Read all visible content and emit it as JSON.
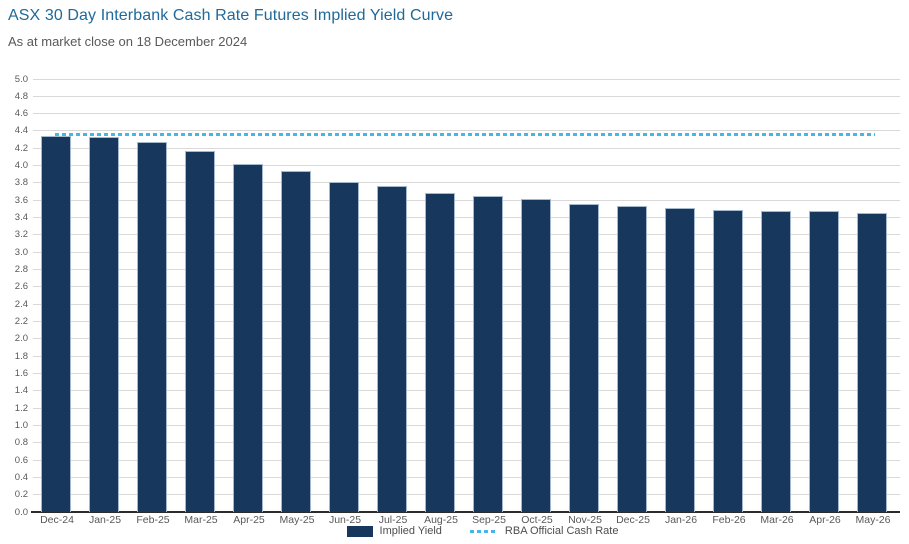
{
  "header": {
    "title": "ASX 30 Day Interbank Cash Rate Futures Implied Yield Curve",
    "subtitle": "As at market close on 18 December 2024"
  },
  "chart_data": {
    "type": "bar",
    "title": "ASX 30 Day Interbank Cash Rate Futures Implied Yield Curve",
    "subtitle": "As at market close on 18 December 2024",
    "categories": [
      "Dec-24",
      "Jan-25",
      "Feb-25",
      "Mar-25",
      "Apr-25",
      "May-25",
      "Jun-25",
      "Jul-25",
      "Aug-25",
      "Sep-25",
      "Oct-25",
      "Nov-25",
      "Dec-25",
      "Jan-26",
      "Feb-26",
      "Mar-26",
      "Apr-26",
      "May-26"
    ],
    "series": [
      {
        "name": "Implied Yield",
        "type": "bar",
        "color": "#17375D",
        "values": [
          4.34,
          4.33,
          4.27,
          4.17,
          4.02,
          3.94,
          3.81,
          3.76,
          3.68,
          3.65,
          3.61,
          3.56,
          3.53,
          3.51,
          3.49,
          3.48,
          3.48,
          3.45
        ]
      },
      {
        "name": "RBA Official Cash Rate",
        "type": "dashed-line",
        "color": "#45B6E8",
        "value": 4.35
      }
    ],
    "xlabel": "",
    "ylabel": "",
    "ylim": [
      0,
      5
    ],
    "ytick_step": 0.2,
    "y_ticks": [
      "5.0",
      "4.8",
      "4.6",
      "4.4",
      "4.2",
      "4.0",
      "3.8",
      "3.6",
      "3.4",
      "3.2",
      "3.0",
      "2.8",
      "2.6",
      "2.4",
      "2.2",
      "2.0",
      "1.8",
      "1.6",
      "1.4",
      "1.2",
      "1.0",
      "0.8",
      "0.6",
      "0.4",
      "0.2",
      "0.0"
    ],
    "grid": true,
    "legend_position": "bottom"
  },
  "colors": {
    "bar_fill": "#17375D",
    "bar_border": "#A3B9CE",
    "rba_line": "#45B6E8",
    "gridline": "#D9D9D9",
    "axis_line": "#2B2B2B",
    "title": "#20699A",
    "subtitle": "#595959",
    "tick_label": "#595959"
  }
}
